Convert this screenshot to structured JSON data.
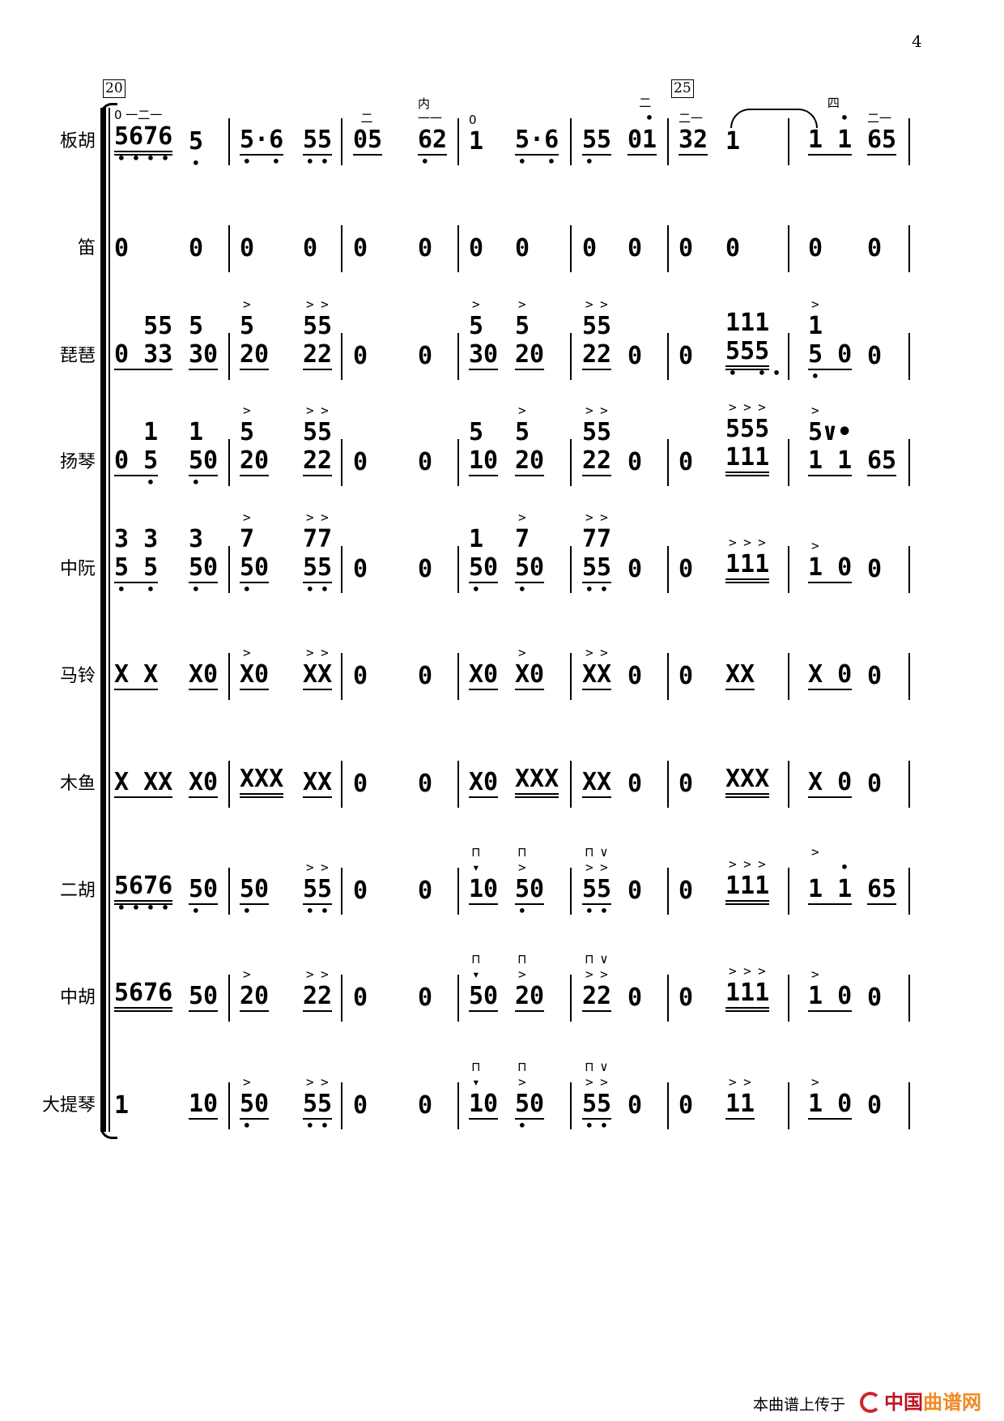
{
  "page_number": "4",
  "rehearsal_marks": [
    "20",
    "25"
  ],
  "footer": {
    "text": "本曲谱上传于",
    "logo_a": "中国",
    "logo_b": "曲谱网",
    "logo_a_color": "#c1121f",
    "logo_b_color": "#f08a24"
  },
  "rows": [
    {
      "label": "板胡",
      "measures": [
        [
          {
            "n": "5676",
            "ul": 2,
            "lo": "••••",
            "top": "0 一二一"
          },
          {
            "n": "5",
            "lo": "•"
          }
        ],
        [
          {
            "n": "5·6",
            "ul": 1,
            "lo": "• •"
          },
          {
            "n": "55",
            "ul": 1,
            "lo": "••"
          }
        ],
        [
          {
            "n": "05",
            "ul": 1,
            "top": "  二"
          },
          {
            "n": "62",
            "ul": 1,
            "lo": "• ",
            "top": "内\n一一"
          }
        ],
        [
          {
            "n": "1",
            "top": "0"
          },
          {
            "n": "5·6",
            "ul": 1,
            "lo": "• •"
          }
        ],
        [
          {
            "n": "55",
            "ul": 1,
            "lo": "• "
          },
          {
            "n": "01",
            "ul": 1,
            "hi": " •",
            "top": "   二"
          }
        ],
        [
          {
            "n": "32",
            "ul": 1,
            "top": "二一"
          },
          {
            "n": "1"
          }
        ],
        [
          {
            "n": "1 1",
            "ul": 1,
            "hi": "  •",
            "top": "     四"
          },
          {
            "n": "65",
            "ul": 1,
            "top": "二一"
          }
        ]
      ]
    },
    {
      "label": "笛",
      "measures": [
        [
          {
            "n": "0"
          },
          {
            "n": "0"
          }
        ],
        [
          {
            "n": "0"
          },
          {
            "n": "0"
          }
        ],
        [
          {
            "n": "0"
          },
          {
            "n": "0"
          }
        ],
        [
          {
            "n": "0"
          },
          {
            "n": "0"
          }
        ],
        [
          {
            "n": "0"
          },
          {
            "n": "0"
          }
        ],
        [
          {
            "n": "0"
          },
          {
            "n": "0"
          }
        ],
        [
          {
            "n": "0"
          },
          {
            "n": "0"
          }
        ]
      ]
    },
    {
      "label": "琵琶",
      "measures": [
        [
          {
            "n": "0 33",
            "up": "  55",
            "ul": 1
          },
          {
            "n": "30",
            "up": "5",
            "ul": 1
          }
        ],
        [
          {
            "n": "20",
            "up": "5",
            "acc": ">",
            "ul": 1
          },
          {
            "n": "22",
            "up": "55",
            "acc": ">>",
            "ul": 1
          }
        ],
        [
          {
            "n": "0"
          },
          {
            "n": "0"
          }
        ],
        [
          {
            "n": "30",
            "up": "5",
            "acc": ">",
            "ul": 1
          },
          {
            "n": "20",
            "up": "5",
            "acc": ">",
            "ul": 1
          }
        ],
        [
          {
            "n": "22",
            "up": "55",
            "acc": ">>",
            "ul": 1
          },
          {
            "n": "0"
          }
        ],
        [
          {
            "n": "0"
          },
          {
            "n": "555",
            "up": "111",
            "lo": "• ••",
            "ul": 2
          }
        ],
        [
          {
            "n": "5 0",
            "up": "1",
            "acc": ">",
            "lo": "•",
            "ul": 1
          },
          {
            "n": "0"
          }
        ]
      ]
    },
    {
      "label": "扬琴",
      "measures": [
        [
          {
            "n": "0 5",
            "up": "  1",
            "lo": "  •",
            "ul": 1
          },
          {
            "n": "50",
            "up": "1",
            "lo": "•",
            "ul": 1
          }
        ],
        [
          {
            "n": "20",
            "up": "5",
            "acc": ">",
            "ul": 1
          },
          {
            "n": "22",
            "up": "55",
            "acc": ">>",
            "ul": 1
          }
        ],
        [
          {
            "n": "0"
          },
          {
            "n": "0"
          }
        ],
        [
          {
            "n": "10",
            "up": "5",
            "ul": 1
          },
          {
            "n": "20",
            "up": "5",
            "acc": ">",
            "ul": 1
          }
        ],
        [
          {
            "n": "22",
            "up": "55",
            "acc": ">>",
            "ul": 1
          },
          {
            "n": "0"
          }
        ],
        [
          {
            "n": "0"
          },
          {
            "n": "111",
            "up": "555",
            "acc": ">>>",
            "ul": 2
          }
        ],
        [
          {
            "n": "1 1",
            "up": "5∨•",
            "acc": ">",
            "ul": 1
          },
          {
            "n": "65",
            "ul": 1
          }
        ]
      ]
    },
    {
      "label": "中阮",
      "measures": [
        [
          {
            "n": "5 5",
            "up": "3 3",
            "lo": "• •",
            "ul": 1
          },
          {
            "n": "50",
            "up": "3",
            "lo": "•",
            "ul": 1
          }
        ],
        [
          {
            "n": "50",
            "up": "7",
            "acc": ">",
            "lo": "•",
            "ul": 1
          },
          {
            "n": "55",
            "up": "77",
            "acc": ">>",
            "lo": "••",
            "ul": 1
          }
        ],
        [
          {
            "n": "0"
          },
          {
            "n": "0"
          }
        ],
        [
          {
            "n": "50",
            "up": "1",
            "lo": "•",
            "ul": 1
          },
          {
            "n": "50",
            "up": "7",
            "acc": ">",
            "lo": "•",
            "ul": 1
          }
        ],
        [
          {
            "n": "55",
            "up": "77",
            "acc": ">>",
            "lo": "••",
            "ul": 1
          },
          {
            "n": "0"
          }
        ],
        [
          {
            "n": "0"
          },
          {
            "n": "111",
            "acc": ">>>",
            "ul": 2
          }
        ],
        [
          {
            "n": "1 0",
            "acc": ">",
            "ul": 1
          },
          {
            "n": "0"
          }
        ]
      ]
    },
    {
      "label": "马铃",
      "measures": [
        [
          {
            "n": "X X",
            "ul": 1
          },
          {
            "n": "X0",
            "ul": 1
          }
        ],
        [
          {
            "n": "X0",
            "acc": ">",
            "ul": 1
          },
          {
            "n": "XX",
            "acc": ">>",
            "ul": 1
          }
        ],
        [
          {
            "n": "0"
          },
          {
            "n": "0"
          }
        ],
        [
          {
            "n": "X0",
            "ul": 1
          },
          {
            "n": "X0",
            "acc": ">",
            "ul": 1
          }
        ],
        [
          {
            "n": "XX",
            "acc": ">>",
            "ul": 1
          },
          {
            "n": "0"
          }
        ],
        [
          {
            "n": "0"
          },
          {
            "n": "XX",
            "ul": 1
          }
        ],
        [
          {
            "n": "X 0",
            "ul": 1
          },
          {
            "n": "0"
          }
        ]
      ]
    },
    {
      "label": "木鱼",
      "measures": [
        [
          {
            "n": "X XX",
            "ul": 1
          },
          {
            "n": "X0",
            "ul": 1
          }
        ],
        [
          {
            "n": "XXX",
            "ul": 2
          },
          {
            "n": "XX",
            "ul": 1
          }
        ],
        [
          {
            "n": "0"
          },
          {
            "n": "0"
          }
        ],
        [
          {
            "n": "X0",
            "ul": 1
          },
          {
            "n": "XXX",
            "ul": 2
          }
        ],
        [
          {
            "n": "XX",
            "ul": 1
          },
          {
            "n": "0"
          }
        ],
        [
          {
            "n": "0"
          },
          {
            "n": "XXX",
            "ul": 2
          }
        ],
        [
          {
            "n": "X 0",
            "ul": 1
          },
          {
            "n": "0"
          }
        ]
      ]
    },
    {
      "label": "二胡",
      "measures": [
        [
          {
            "n": "5676",
            "ul": 2,
            "lo": "••••"
          },
          {
            "n": "50",
            "lo": "•",
            "ul": 1
          }
        ],
        [
          {
            "n": "50",
            "lo": "•",
            "ul": 1
          },
          {
            "n": "55",
            "acc": ">>",
            "lo": "••",
            "ul": 1
          }
        ],
        [
          {
            "n": "0"
          },
          {
            "n": "0"
          }
        ],
        [
          {
            "n": "10",
            "bow": "⊓",
            "acc": "▾",
            "ul": 1
          },
          {
            "n": "50",
            "bow": "⊓",
            "acc": ">",
            "lo": "•",
            "ul": 1
          }
        ],
        [
          {
            "n": "55",
            "bow": "⊓∨",
            "acc": ">>",
            "lo": "••",
            "ul": 1
          },
          {
            "n": "0"
          }
        ],
        [
          {
            "n": "0"
          },
          {
            "n": "111",
            "acc": ">>>",
            "ul": 2
          }
        ],
        [
          {
            "n": "1 1",
            "hi": "  •",
            "acc": ">",
            "ul": 1
          },
          {
            "n": "65",
            "ul": 1
          }
        ]
      ]
    },
    {
      "label": "中胡",
      "measures": [
        [
          {
            "n": "5676",
            "ul": 2
          },
          {
            "n": "50",
            "ul": 1
          }
        ],
        [
          {
            "n": "20",
            "acc": ">",
            "ul": 1
          },
          {
            "n": "22",
            "acc": ">>",
            "ul": 1
          }
        ],
        [
          {
            "n": "0"
          },
          {
            "n": "0"
          }
        ],
        [
          {
            "n": "50",
            "bow": "⊓",
            "acc": "▾",
            "ul": 1
          },
          {
            "n": "20",
            "bow": "⊓",
            "acc": ">",
            "ul": 1
          }
        ],
        [
          {
            "n": "22",
            "bow": "⊓∨",
            "acc": ">>",
            "ul": 1
          },
          {
            "n": "0"
          }
        ],
        [
          {
            "n": "0"
          },
          {
            "n": "111",
            "acc": ">>>",
            "ul": 2
          }
        ],
        [
          {
            "n": "1 0",
            "acc": ">",
            "ul": 1
          },
          {
            "n": "0"
          }
        ]
      ]
    },
    {
      "label": "大提琴",
      "measures": [
        [
          {
            "n": "1"
          },
          {
            "n": "10",
            "ul": 1
          }
        ],
        [
          {
            "n": "50",
            "acc": ">",
            "lo": "•",
            "ul": 1
          },
          {
            "n": "55",
            "acc": ">>",
            "lo": "••",
            "ul": 1
          }
        ],
        [
          {
            "n": "0"
          },
          {
            "n": "0"
          }
        ],
        [
          {
            "n": "10",
            "bow": "⊓",
            "acc": "▾",
            "ul": 1
          },
          {
            "n": "50",
            "bow": "⊓",
            "acc": ">",
            "lo": "•",
            "ul": 1
          }
        ],
        [
          {
            "n": "55",
            "bow": "⊓∨",
            "acc": ">>",
            "lo": "••",
            "ul": 1
          },
          {
            "n": "0"
          }
        ],
        [
          {
            "n": "0"
          },
          {
            "n": "11",
            "acc": ">>",
            "ul": 1
          }
        ],
        [
          {
            "n": "1 0",
            "acc": ">",
            "ul": 1
          },
          {
            "n": "0"
          }
        ]
      ]
    }
  ]
}
